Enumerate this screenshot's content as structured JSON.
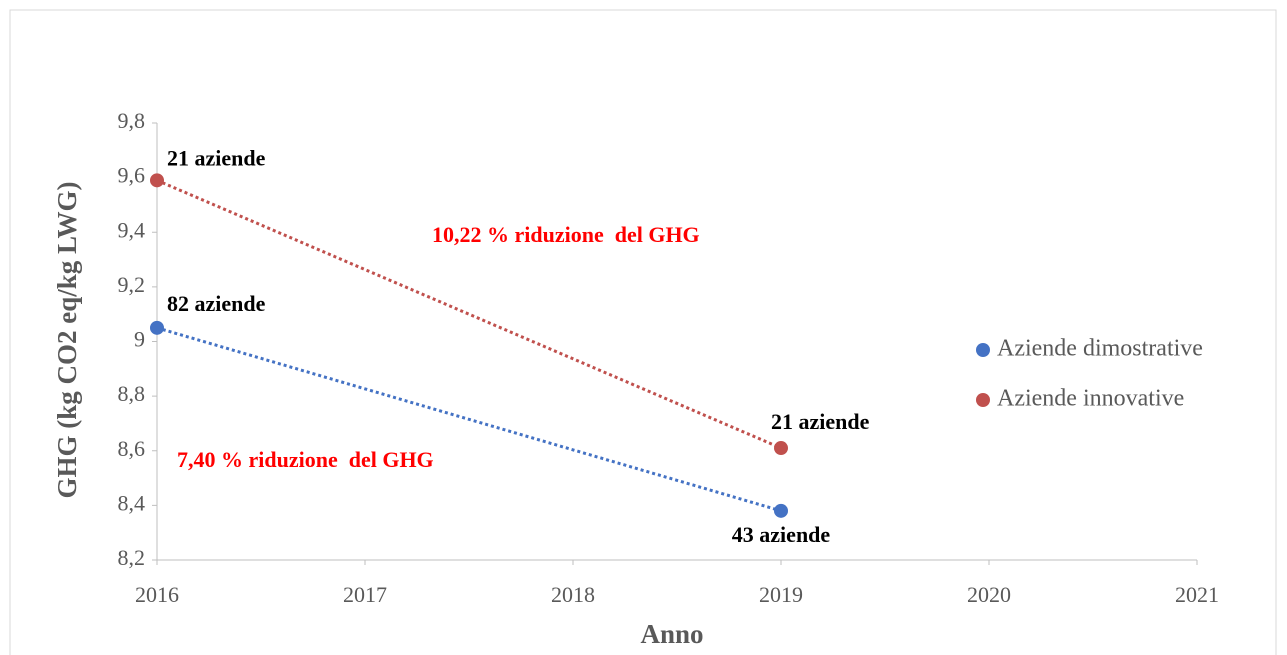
{
  "chart_data": {
    "type": "scatter",
    "ylabel": "GHG (kg CO2 eq/kg LWG)",
    "xlabel": "Anno",
    "xlim": [
      2016,
      2021
    ],
    "xticks": [
      2016,
      2017,
      2018,
      2019,
      2020,
      2021
    ],
    "ylim": [
      8.2,
      9.8
    ],
    "yticks": [
      {
        "value": 8.2,
        "label": "8,2"
      },
      {
        "value": 8.4,
        "label": "8,4"
      },
      {
        "value": 8.6,
        "label": "8,6"
      },
      {
        "value": 8.8,
        "label": "8,8"
      },
      9,
      {
        "value": 9.2,
        "label": "9,2"
      },
      {
        "value": 9.4,
        "label": "9,4"
      },
      {
        "value": 9.6,
        "label": "9,6"
      },
      {
        "value": 9.8,
        "label": "9,8"
      }
    ],
    "series": [
      {
        "name": "Aziende dimostrative",
        "color": "#4472c4",
        "x": [
          2016,
          2019
        ],
        "values": [
          9.05,
          8.38
        ],
        "labels": [
          "82 aziende",
          "43 aziende"
        ]
      },
      {
        "name": "Aziende innovative",
        "color": "#c0504d",
        "x": [
          2016,
          2019
        ],
        "values": [
          9.59,
          8.61
        ],
        "labels": [
          "21 aziende",
          "21 aziende"
        ]
      }
    ],
    "annotations": [
      "7,40 % riduzione  del GHG",
      "10,22 % riduzione  del GHG"
    ]
  }
}
